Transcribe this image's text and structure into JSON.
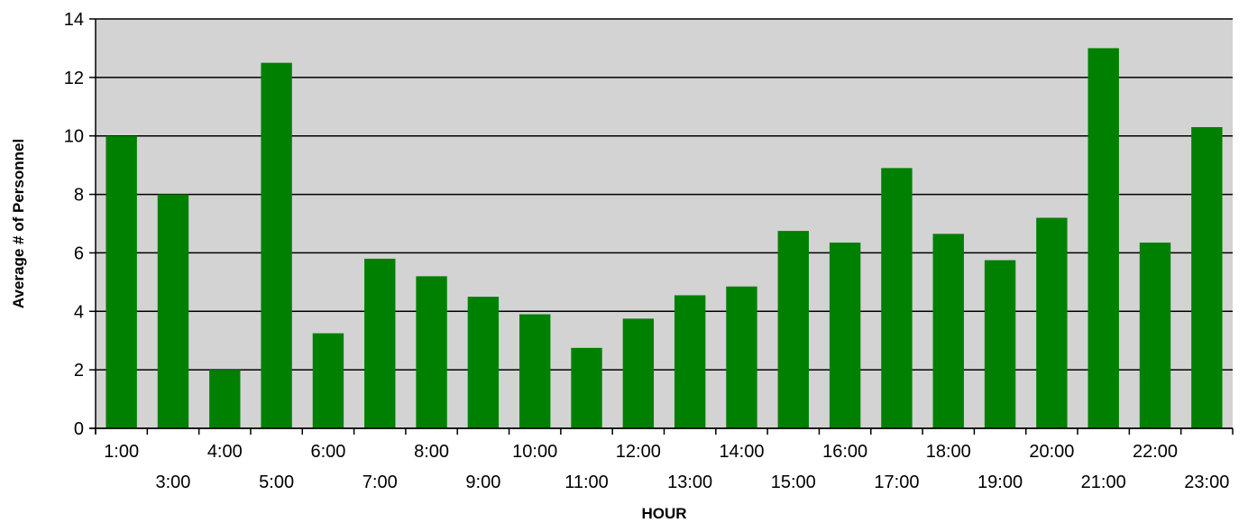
{
  "chart_data": {
    "type": "bar",
    "xlabel": "HOUR",
    "ylabel": "Average # of Personnel",
    "ylim": [
      0,
      14
    ],
    "yticks": [
      0,
      2,
      4,
      6,
      8,
      10,
      12,
      14
    ],
    "grid": "horizontal",
    "categories": [
      "1:00",
      "3:00",
      "4:00",
      "5:00",
      "6:00",
      "7:00",
      "8:00",
      "9:00",
      "10:00",
      "11:00",
      "12:00",
      "13:00",
      "14:00",
      "15:00",
      "16:00",
      "17:00",
      "18:00",
      "19:00",
      "20:00",
      "21:00",
      "22:00",
      "23:00"
    ],
    "values": [
      10.0,
      8.0,
      2.0,
      12.5,
      3.25,
      5.8,
      5.2,
      4.5,
      3.9,
      2.75,
      3.75,
      4.55,
      4.85,
      6.75,
      6.35,
      8.9,
      6.65,
      5.75,
      7.2,
      13.0,
      6.35,
      10.3
    ],
    "colors": {
      "bar": "#008000",
      "plot_background": "#d3d3d3",
      "grid": "#000000"
    }
  }
}
